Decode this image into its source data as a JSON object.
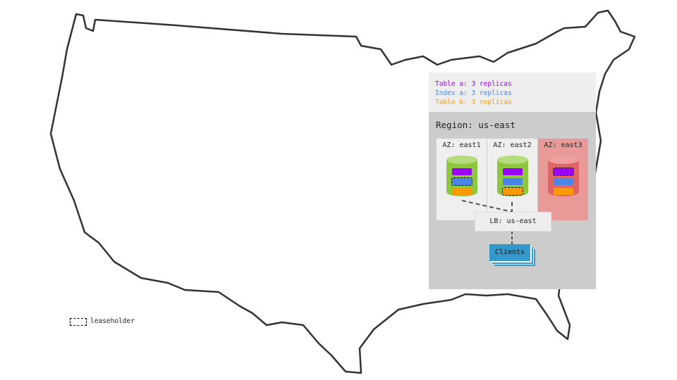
{
  "legend": {
    "items": [
      {
        "text": "Table a: 3 replicas",
        "color": "#9900ff"
      },
      {
        "text": "Index a: 3 replicas",
        "color": "#4a86e8"
      },
      {
        "text": "Table b: 3 replicas",
        "color": "#ff9900"
      }
    ]
  },
  "region": {
    "title": "Region: us-east",
    "zones": [
      {
        "label": "AZ: east1",
        "status": "healthy",
        "leaseholder": "Index a"
      },
      {
        "label": "AZ: east2",
        "status": "healthy",
        "leaseholder": "Table b"
      },
      {
        "label": "AZ: east3",
        "status": "failed",
        "leaseholder": "Table a"
      }
    ],
    "load_balancer": "LB: us-east",
    "clients": "Clients"
  },
  "key": {
    "leaseholder": "leaseholder"
  },
  "colors": {
    "healthy": "#8dc63f",
    "failed": "#e06666",
    "failed_bg": "#ea9999",
    "clients": "#3399cc"
  }
}
